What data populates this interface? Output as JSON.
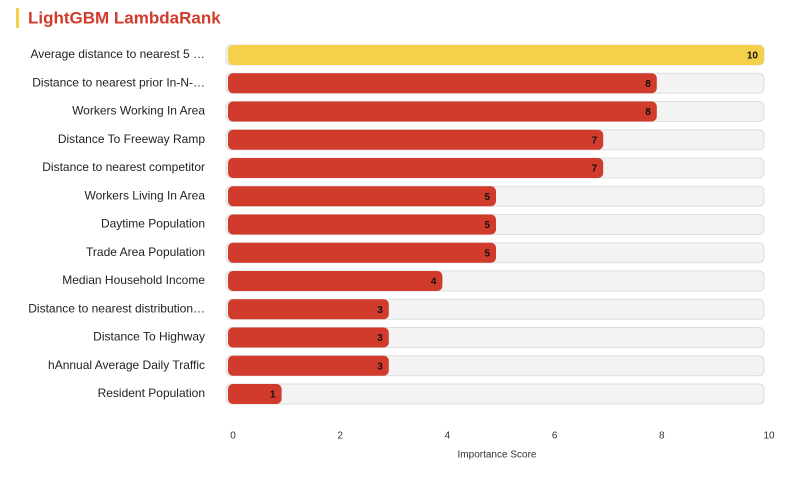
{
  "chart_data": {
    "type": "bar",
    "orientation": "horizontal",
    "title": "LightGBM LambdaRank",
    "x_label": "Importance Score",
    "categories": [
      "Average distance to nearest 5 …",
      "Distance to nearest prior In-N-…",
      "Workers Working In Area",
      "Distance To Freeway Ramp",
      "Distance to nearest competitor",
      "Workers Living In Area",
      "Daytime Population",
      "Trade Area Population",
      "Median Household Income",
      "Distance to nearest distribution…",
      "Distance To Highway",
      "hAnnual Average Daily Traffic",
      "Resident Population"
    ],
    "values": [
      10,
      8,
      8,
      7,
      7,
      5,
      5,
      5,
      4,
      3,
      3,
      3,
      1
    ],
    "colors": [
      "#f5d04a",
      "#d03b2c",
      "#d03b2c",
      "#d03b2c",
      "#d03b2c",
      "#d03b2c",
      "#d03b2c",
      "#d03b2c",
      "#d03b2c",
      "#d03b2c",
      "#d03b2c",
      "#d03b2c",
      "#d03b2c"
    ],
    "xlim": [
      0,
      10
    ],
    "xticks": [
      0,
      2,
      4,
      6,
      8,
      10
    ]
  }
}
